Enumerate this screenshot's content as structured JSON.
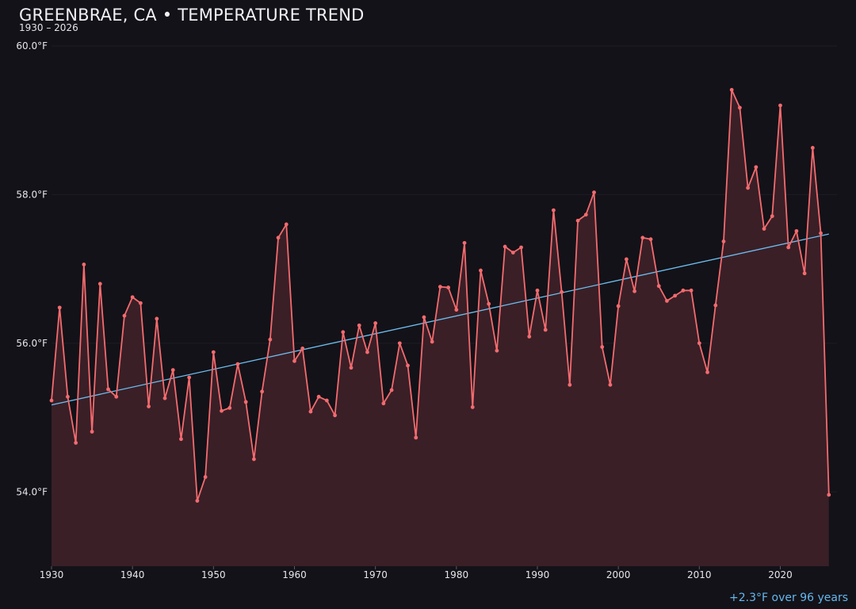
{
  "chart_data": {
    "type": "line",
    "title": "GREENBRAE, CA • TEMPERATURE TREND",
    "subtitle": "1930 – 2026",
    "xlabel": "",
    "ylabel": "",
    "x": [
      1930,
      1931,
      1932,
      1933,
      1934,
      1935,
      1936,
      1937,
      1938,
      1939,
      1940,
      1941,
      1942,
      1943,
      1944,
      1945,
      1946,
      1947,
      1948,
      1949,
      1950,
      1951,
      1952,
      1953,
      1954,
      1955,
      1956,
      1957,
      1958,
      1959,
      1960,
      1961,
      1962,
      1963,
      1964,
      1965,
      1966,
      1967,
      1968,
      1969,
      1970,
      1971,
      1972,
      1973,
      1974,
      1975,
      1976,
      1977,
      1978,
      1979,
      1980,
      1981,
      1982,
      1983,
      1984,
      1985,
      1986,
      1987,
      1988,
      1989,
      1990,
      1991,
      1992,
      1993,
      1994,
      1995,
      1996,
      1997,
      1998,
      1999,
      2000,
      2001,
      2002,
      2003,
      2004,
      2005,
      2006,
      2007,
      2008,
      2009,
      2010,
      2011,
      2012,
      2013,
      2014,
      2015,
      2016,
      2017,
      2018,
      2019,
      2020,
      2021,
      2022,
      2023,
      2024,
      2025,
      2026
    ],
    "series": [
      {
        "values": [
          55.23,
          56.48,
          55.28,
          54.66,
          57.06,
          54.81,
          56.8,
          55.38,
          55.28,
          56.37,
          56.62,
          56.54,
          55.15,
          56.33,
          55.26,
          55.64,
          54.71,
          55.54,
          53.88,
          54.2,
          55.88,
          55.09,
          55.13,
          55.72,
          55.21,
          54.44,
          55.35,
          56.05,
          57.42,
          57.6,
          55.76,
          55.93,
          55.08,
          55.28,
          55.23,
          55.03,
          56.15,
          55.67,
          56.24,
          55.88,
          56.27,
          55.19,
          55.37,
          56.0,
          55.7,
          54.73,
          56.35,
          56.02,
          56.76,
          56.75,
          56.45,
          57.35,
          55.14,
          56.98,
          56.53,
          55.9,
          57.3,
          57.22,
          57.29,
          56.09,
          56.71,
          56.18,
          57.79,
          56.69,
          55.44,
          57.65,
          57.73,
          58.03,
          55.95,
          55.44,
          56.5,
          57.13,
          56.7,
          57.42,
          57.4,
          56.77,
          56.57,
          56.64,
          56.71,
          56.71,
          56.0,
          55.61,
          56.51,
          57.37,
          59.41,
          59.17,
          58.09,
          58.37,
          57.54,
          57.71,
          59.2,
          57.29,
          57.51,
          56.94,
          58.63,
          57.48,
          53.96
        ],
        "color": "#f36b6e"
      }
    ],
    "trend": {
      "start": [
        1930,
        55.17
      ],
      "end": [
        2026,
        57.47
      ],
      "color": "#6cbef0"
    },
    "xticks": [
      1930,
      1940,
      1950,
      1960,
      1970,
      1980,
      1990,
      2000,
      2010,
      2020
    ],
    "xtick_labels": [
      "1930",
      "1940",
      "1950",
      "1960",
      "1970",
      "1980",
      "1990",
      "2000",
      "2010",
      "2020"
    ],
    "yticks": [
      54,
      56,
      58,
      60
    ],
    "ytick_labels": [
      "54.0°F",
      "56.0°F",
      "58.0°F",
      "60.0°F"
    ],
    "xlim": [
      1930,
      2027
    ],
    "ylim": [
      53.0,
      60.0
    ],
    "grid": true,
    "annotation": "+2.3°F over 96 years",
    "fill_color": "#3a1f27",
    "background": "#131218"
  }
}
